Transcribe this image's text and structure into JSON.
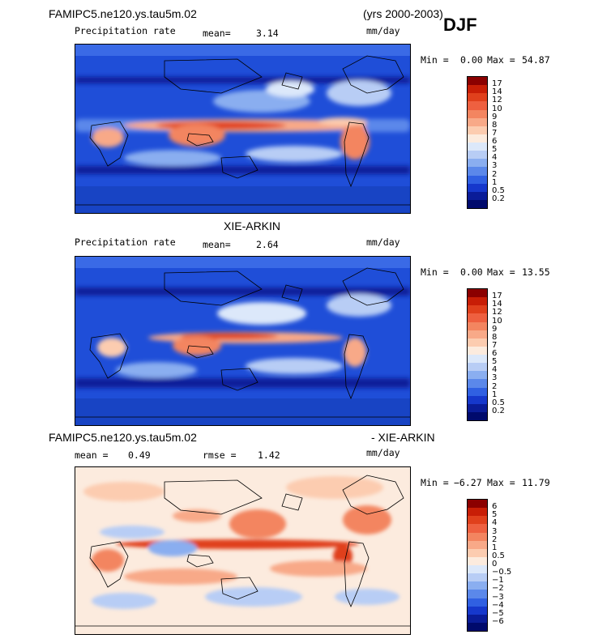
{
  "season": "DJF",
  "panels": [
    {
      "title_left": "FAMIPC5.ne120.ys.tau5m.02",
      "title_right": "(yrs 2000-2003)",
      "field_label": "Precipitation rate",
      "stat1_label": "mean=",
      "stat1_value": "3.14",
      "units": "mm/day",
      "min_label": "Min =",
      "min_value": "0.00",
      "max_label": "Max =",
      "max_value": "54.87",
      "levels": [
        "17",
        "14",
        "12",
        "10",
        "9",
        "8",
        "7",
        "6",
        "5",
        "4",
        "3",
        "2",
        "1",
        "0.5",
        "0.2"
      ],
      "colors": [
        "#8b0000",
        "#c81e06",
        "#e0401c",
        "#ee6040",
        "#f38560",
        "#f8a988",
        "#fcccb0",
        "#fcebde",
        "#dce8fa",
        "#b8cdf5",
        "#8aaef0",
        "#5b88ea",
        "#3060e2",
        "#1638cc",
        "#0a1c98",
        "#000a6c"
      ]
    },
    {
      "title_center": "XIE-ARKIN",
      "field_label": "Precipitation rate",
      "stat1_label": "mean=",
      "stat1_value": "2.64",
      "units": "mm/day",
      "min_label": "Min =",
      "min_value": "0.00",
      "max_label": "Max =",
      "max_value": "13.55",
      "levels": [
        "17",
        "14",
        "12",
        "10",
        "9",
        "8",
        "7",
        "6",
        "5",
        "4",
        "3",
        "2",
        "1",
        "0.5",
        "0.2"
      ],
      "colors": [
        "#8b0000",
        "#c81e06",
        "#e0401c",
        "#ee6040",
        "#f38560",
        "#f8a988",
        "#fcccb0",
        "#fcebde",
        "#dce8fa",
        "#b8cdf5",
        "#8aaef0",
        "#5b88ea",
        "#3060e2",
        "#1638cc",
        "#0a1c98",
        "#000a6c"
      ]
    },
    {
      "title_left": "FAMIPC5.ne120.ys.tau5m.02",
      "title_right": "- XIE-ARKIN",
      "stat1_label": "mean =",
      "stat1_value": "0.49",
      "stat2_label": "rmse =",
      "stat2_value": "1.42",
      "units": "mm/day",
      "min_label": "Min =",
      "min_value": "−6.27",
      "max_label": "Max =",
      "max_value": "11.79",
      "levels": [
        "6",
        "5",
        "4",
        "3",
        "2",
        "1",
        "0.5",
        "0",
        "−0.5",
        "−1",
        "−2",
        "−3",
        "−4",
        "−5",
        "−6"
      ],
      "colors": [
        "#8b0000",
        "#c81e06",
        "#e0401c",
        "#ee6040",
        "#f38560",
        "#f8a988",
        "#fcccb0",
        "#fcebde",
        "#dce8fa",
        "#b8cdf5",
        "#8aaef0",
        "#5b88ea",
        "#3060e2",
        "#1638cc",
        "#0a1c98",
        "#000a6c"
      ]
    }
  ]
}
